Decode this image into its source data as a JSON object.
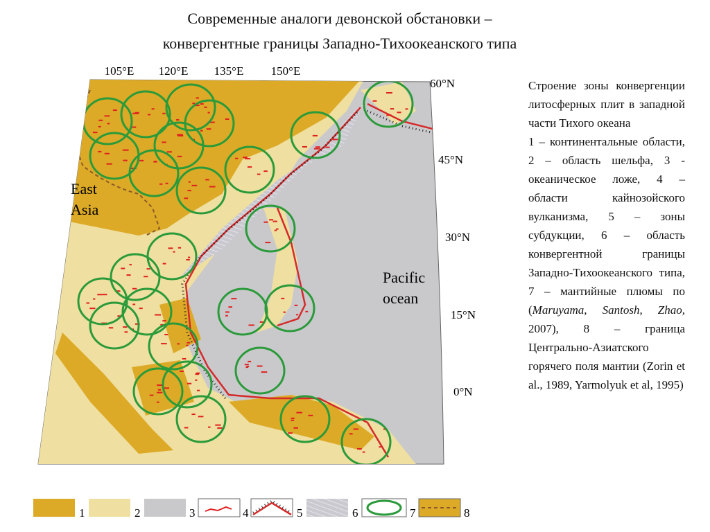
{
  "header": {
    "title_line1": "Современные аналоги девонской обстановки –",
    "title_line2": "конвергентные границы Западно-Тихоокеанского типа"
  },
  "map": {
    "longitudes": [
      "105°E",
      "120°E",
      "135°E",
      "150°E"
    ],
    "latitudes": [
      "60°N",
      "45°N",
      "30°N",
      "15°N",
      "0°N"
    ],
    "labels": {
      "east_asia_line1": "East",
      "east_asia_line2": "Asia",
      "pacific_line1": "Pacific",
      "pacific_line2": "ocean"
    }
  },
  "description": {
    "title": "Строение зоны конвергенции литосферных плит в западной части Тихого океана",
    "parts": [
      {
        "text": "1 – континентальные области, 2 – область шельфа, 3 - океаническое ложе, 4 – области кайнозойского вулканизма, 5 – зоны субдукции, 6 – область конвергентной границы Западно-Тихоокеанского типа, 7 – мантийные плюмы по (",
        "italic": false
      },
      {
        "text": "Maruyama, Santosh, Zhao,",
        "italic": true
      },
      {
        "text": " 2007), 8 – граница Центрально-Азиатского горячего поля мантии (Zorin et al., 1989, Yarmolyuk et al, 1995)",
        "italic": false
      }
    ]
  },
  "legend": [
    "1",
    "2",
    "3",
    "4",
    "5",
    "6",
    "7",
    "8"
  ]
}
